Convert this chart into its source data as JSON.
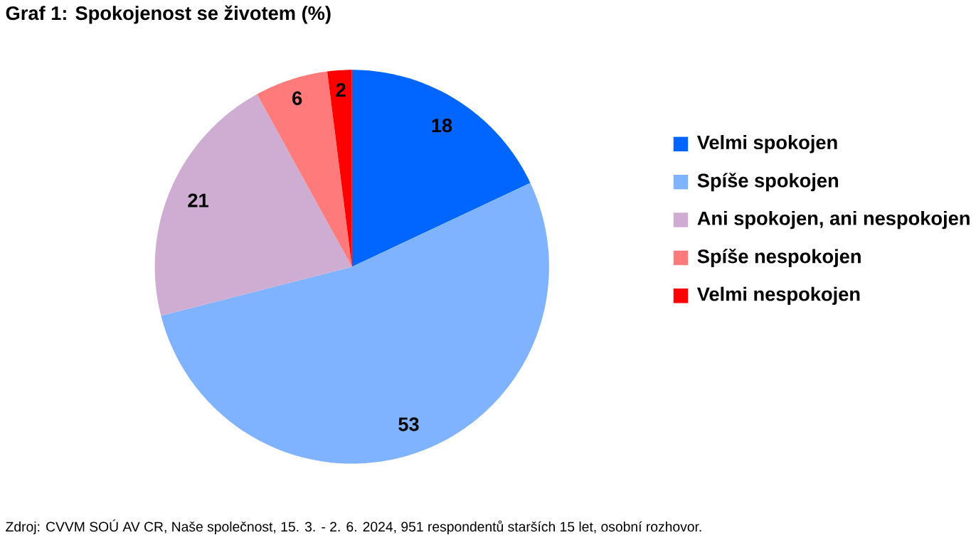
{
  "chart_data": {
    "type": "pie",
    "title": "Graf 1: Spokojenost se životem (%)",
    "categories": [
      "Velmi spokojen",
      "Spíše spokojen",
      "Ani spokojen, ani nespokojen",
      "Spíše nespokojen",
      "Velmi nespokojen"
    ],
    "values": [
      18,
      53,
      21,
      6,
      2
    ],
    "colors": [
      "#0066ff",
      "#80b3ff",
      "#cfadd3",
      "#ff7a7a",
      "#ff0000"
    ],
    "data_labels": true,
    "legend": "right",
    "annotations": [
      "Zdroj: CVVM SOÚ AV CR, Naše společnost, 15. 3. - 2. 6. 2024, 951 respondentů starších 15 let, osobní rozhovor."
    ]
  }
}
